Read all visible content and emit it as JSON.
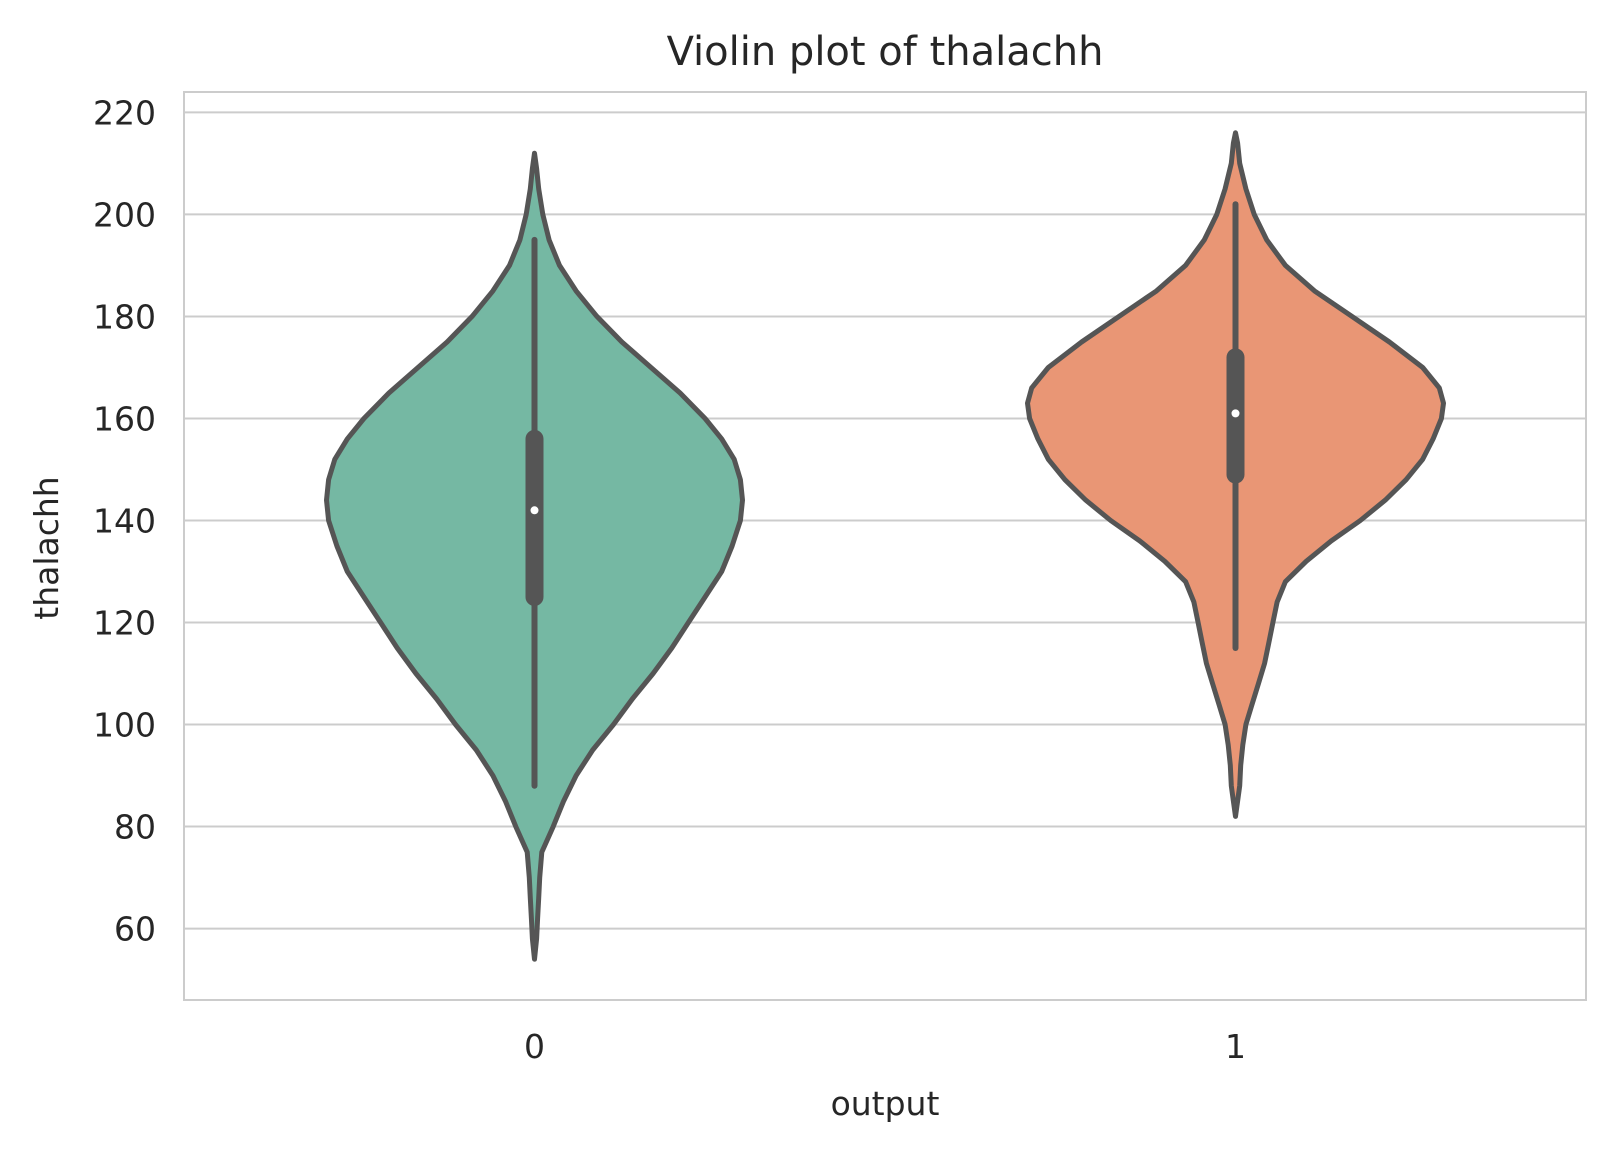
{
  "chart_data": {
    "type": "violin",
    "title": "Violin plot of thalachh",
    "xlabel": "output",
    "ylabel": "thalachh",
    "categories": [
      "0",
      "1"
    ],
    "ylim": [
      46,
      224
    ],
    "yticks": [
      60,
      80,
      100,
      120,
      140,
      160,
      180,
      200,
      220
    ],
    "grid": true,
    "legend": "none",
    "violins": [
      {
        "category": "0",
        "color": "#75b8a3",
        "min": 54,
        "max": 212,
        "whisker_low": 88,
        "whisker_high": 195,
        "q1": 125,
        "median": 142,
        "q3": 156,
        "density": [
          [
            54,
            0.0
          ],
          [
            58,
            0.01
          ],
          [
            62,
            0.015
          ],
          [
            66,
            0.02
          ],
          [
            70,
            0.025
          ],
          [
            75,
            0.035
          ],
          [
            80,
            0.09
          ],
          [
            85,
            0.14
          ],
          [
            90,
            0.2
          ],
          [
            95,
            0.28
          ],
          [
            100,
            0.38
          ],
          [
            105,
            0.47
          ],
          [
            110,
            0.57
          ],
          [
            115,
            0.66
          ],
          [
            120,
            0.74
          ],
          [
            125,
            0.82
          ],
          [
            130,
            0.9
          ],
          [
            135,
            0.95
          ],
          [
            140,
            0.99
          ],
          [
            144,
            1.0
          ],
          [
            148,
            0.99
          ],
          [
            152,
            0.96
          ],
          [
            156,
            0.9
          ],
          [
            160,
            0.82
          ],
          [
            165,
            0.7
          ],
          [
            170,
            0.56
          ],
          [
            175,
            0.42
          ],
          [
            180,
            0.3
          ],
          [
            185,
            0.2
          ],
          [
            190,
            0.12
          ],
          [
            195,
            0.07
          ],
          [
            200,
            0.04
          ],
          [
            205,
            0.02
          ],
          [
            209,
            0.01
          ],
          [
            212,
            0.0
          ]
        ]
      },
      {
        "category": "1",
        "color": "#e99675",
        "min": 82,
        "max": 216,
        "whisker_low": 115,
        "whisker_high": 202,
        "q1": 149,
        "median": 161,
        "q3": 172,
        "density": [
          [
            82,
            0.0
          ],
          [
            85,
            0.01
          ],
          [
            88,
            0.02
          ],
          [
            92,
            0.025
          ],
          [
            96,
            0.035
          ],
          [
            100,
            0.05
          ],
          [
            104,
            0.08
          ],
          [
            108,
            0.11
          ],
          [
            112,
            0.14
          ],
          [
            116,
            0.16
          ],
          [
            120,
            0.18
          ],
          [
            124,
            0.2
          ],
          [
            128,
            0.24
          ],
          [
            132,
            0.34
          ],
          [
            136,
            0.46
          ],
          [
            140,
            0.6
          ],
          [
            144,
            0.72
          ],
          [
            148,
            0.82
          ],
          [
            152,
            0.9
          ],
          [
            156,
            0.95
          ],
          [
            160,
            0.99
          ],
          [
            163,
            1.0
          ],
          [
            166,
            0.98
          ],
          [
            170,
            0.9
          ],
          [
            175,
            0.74
          ],
          [
            180,
            0.56
          ],
          [
            185,
            0.38
          ],
          [
            190,
            0.24
          ],
          [
            195,
            0.15
          ],
          [
            200,
            0.09
          ],
          [
            205,
            0.05
          ],
          [
            210,
            0.02
          ],
          [
            214,
            0.01
          ],
          [
            216,
            0.0
          ]
        ]
      }
    ]
  }
}
